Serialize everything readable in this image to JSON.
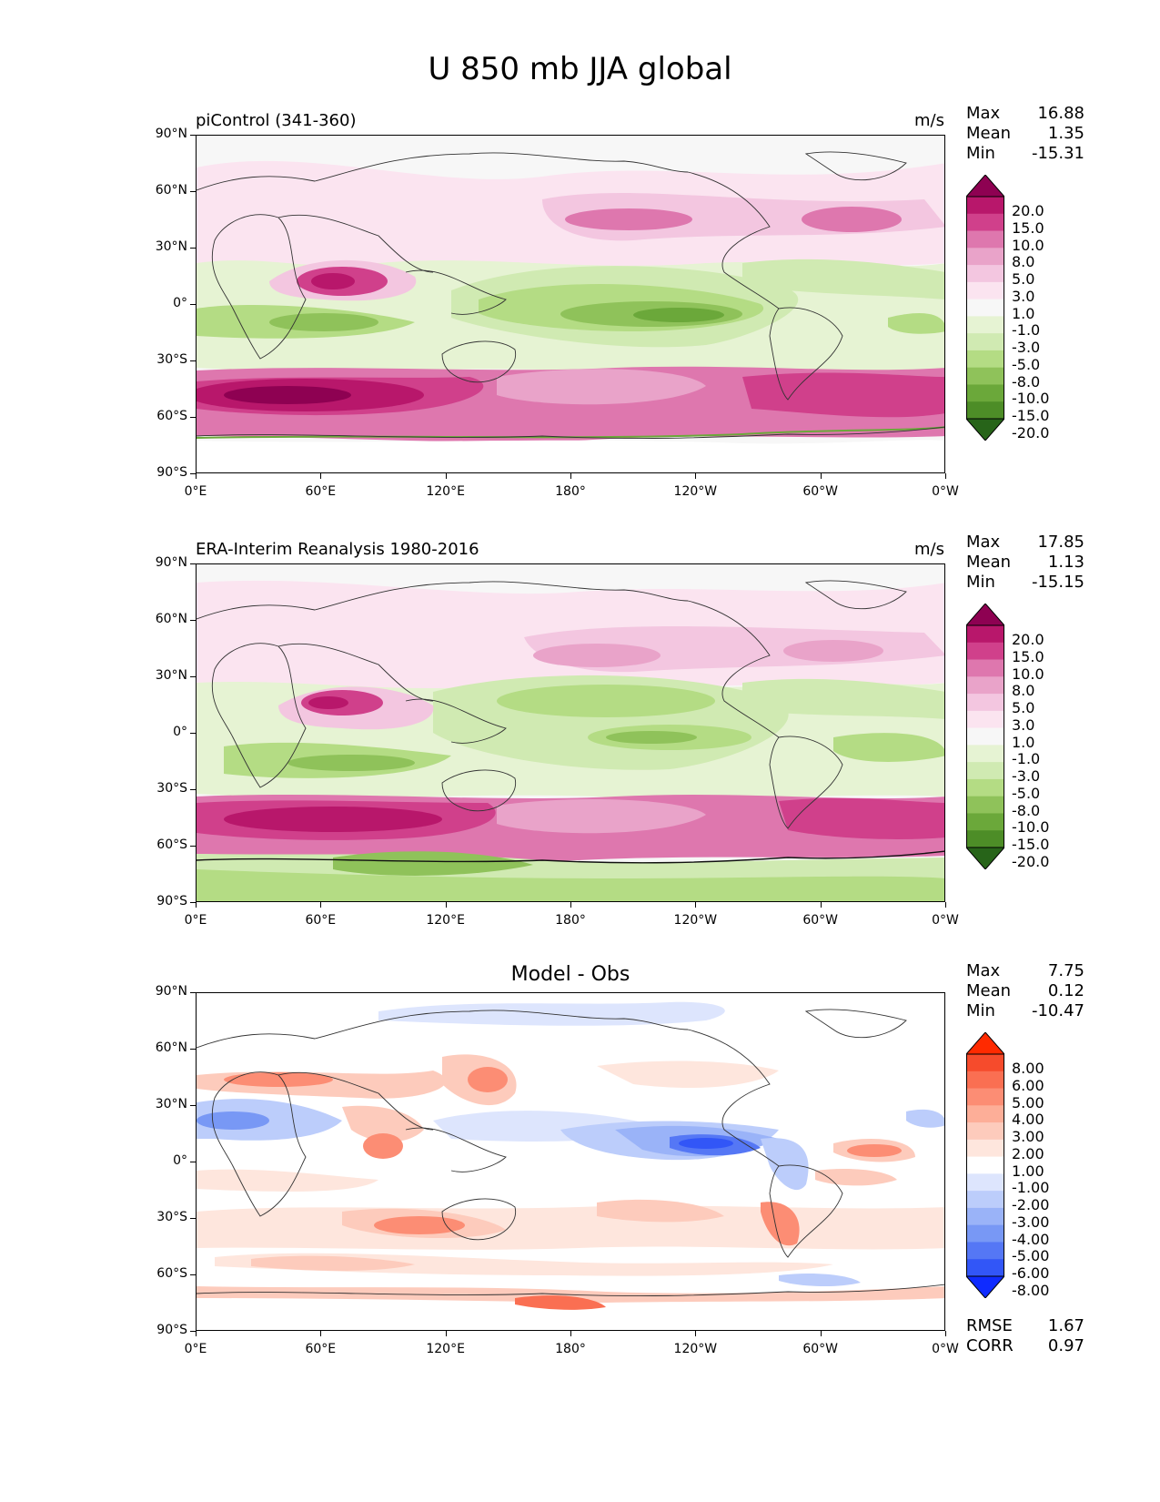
{
  "title": "U 850 mb JJA global",
  "lat_ticks": [
    "90°N",
    "60°N",
    "30°N",
    "0°",
    "30°S",
    "60°S",
    "90°S"
  ],
  "lon_ticks": [
    "0°E",
    "60°E",
    "120°E",
    "180°",
    "120°W",
    "60°W",
    "0°W"
  ],
  "panels": [
    {
      "title": "piControl (341-360)",
      "units": "m/s",
      "stats": {
        "max_label": "Max",
        "max": "16.88",
        "mean_label": "Mean",
        "mean": "1.35",
        "min_label": "Min",
        "min": "-15.31"
      },
      "colorbar": {
        "levels": [
          "20.0",
          "15.0",
          "10.0",
          "8.0",
          "5.0",
          "3.0",
          "1.0",
          "-1.0",
          "-3.0",
          "-5.0",
          "-8.0",
          "-10.0",
          "-15.0",
          "-20.0"
        ],
        "colors": [
          "#8e0152",
          "#b8176b",
          "#d0408b",
          "#de77ae",
          "#e9a3c9",
          "#f3c6e0",
          "#fbe4f0",
          "#f7f7f7",
          "#e6f3d3",
          "#d0eab2",
          "#b4dc84",
          "#8fc25a",
          "#6ba83a",
          "#4d8d27",
          "#276419"
        ]
      }
    },
    {
      "title": "ERA-Interim Reanalysis 1980-2016",
      "units": "m/s",
      "stats": {
        "max_label": "Max",
        "max": "17.85",
        "mean_label": "Mean",
        "mean": "1.13",
        "min_label": "Min",
        "min": "-15.15"
      },
      "colorbar": {
        "levels": [
          "20.0",
          "15.0",
          "10.0",
          "8.0",
          "5.0",
          "3.0",
          "1.0",
          "-1.0",
          "-3.0",
          "-5.0",
          "-8.0",
          "-10.0",
          "-15.0",
          "-20.0"
        ],
        "colors": [
          "#8e0152",
          "#b8176b",
          "#d0408b",
          "#de77ae",
          "#e9a3c9",
          "#f3c6e0",
          "#fbe4f0",
          "#f7f7f7",
          "#e6f3d3",
          "#d0eab2",
          "#b4dc84",
          "#8fc25a",
          "#6ba83a",
          "#4d8d27",
          "#276419"
        ]
      }
    },
    {
      "title": "Model - Obs",
      "stats": {
        "max_label": "Max",
        "max": "7.75",
        "mean_label": "Mean",
        "mean": "0.12",
        "min_label": "Min",
        "min": "-10.47"
      },
      "colorbar": {
        "levels": [
          "8.00",
          "6.00",
          "5.00",
          "4.00",
          "3.00",
          "2.00",
          "1.00",
          "-1.00",
          "-2.00",
          "-3.00",
          "-4.00",
          "-5.00",
          "-6.00",
          "-8.00"
        ],
        "colors": [
          "#ff2a00",
          "#f64b2c",
          "#fa6f52",
          "#fc8d74",
          "#fdae98",
          "#fdcbbc",
          "#fee6dd",
          "#ffffff",
          "#dde5fd",
          "#bccdfb",
          "#9ab3f8",
          "#7898f5",
          "#5577f5",
          "#3256f7",
          "#0f2bff"
        ]
      },
      "metrics": {
        "rmse_label": "RMSE",
        "rmse": "1.67",
        "corr_label": "CORR",
        "corr": "0.97"
      }
    }
  ]
}
